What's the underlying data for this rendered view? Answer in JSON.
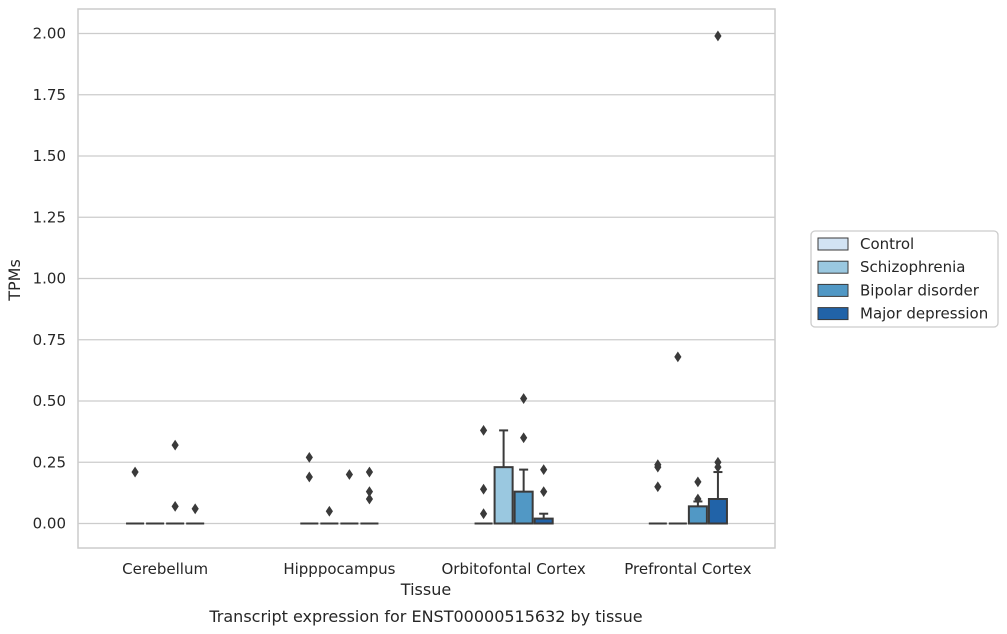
{
  "caption": "Transcript expression for ENST00000515632 by tissue",
  "chart_data": {
    "type": "box",
    "xlabel": "Tissue",
    "ylabel": "TPMs",
    "ylim": [
      -0.1,
      2.1
    ],
    "yticks": [
      0.0,
      0.25,
      0.5,
      0.75,
      1.0,
      1.25,
      1.5,
      1.75,
      2.0
    ],
    "ytick_labels": [
      "0.00",
      "0.25",
      "0.50",
      "0.75",
      "1.00",
      "1.25",
      "1.50",
      "1.75",
      "2.00"
    ],
    "grid": "horizontal",
    "legend_position": "right",
    "categories": [
      "Cerebellum",
      "Hipppocampus",
      "Orbitofontal Cortex",
      "Prefrontal Cortex"
    ],
    "series": [
      {
        "name": "Control",
        "color": "#d2e3f3",
        "boxes": [
          {
            "q1": 0,
            "median": 0,
            "q3": 0,
            "whisker_low": 0,
            "whisker_high": 0,
            "outliers": [
              0.21
            ]
          },
          {
            "q1": 0,
            "median": 0,
            "q3": 0,
            "whisker_low": 0,
            "whisker_high": 0,
            "outliers": [
              0.19,
              0.27
            ]
          },
          {
            "q1": 0,
            "median": 0,
            "q3": 0,
            "whisker_low": 0,
            "whisker_high": 0,
            "outliers": [
              0.04,
              0.14,
              0.38
            ]
          },
          {
            "q1": 0,
            "median": 0,
            "q3": 0,
            "whisker_low": 0,
            "whisker_high": 0,
            "outliers": [
              0.15,
              0.23,
              0.24
            ]
          }
        ]
      },
      {
        "name": "Schizophrenia",
        "color": "#9ac8e0",
        "boxes": [
          {
            "q1": 0,
            "median": 0,
            "q3": 0,
            "whisker_low": 0,
            "whisker_high": 0,
            "outliers": []
          },
          {
            "q1": 0,
            "median": 0,
            "q3": 0,
            "whisker_low": 0,
            "whisker_high": 0,
            "outliers": [
              0.05
            ]
          },
          {
            "q1": 0,
            "median": 0,
            "q3": 0.23,
            "whisker_low": 0,
            "whisker_high": 0.38,
            "outliers": []
          },
          {
            "q1": 0,
            "median": 0,
            "q3": 0,
            "whisker_low": 0,
            "whisker_high": 0,
            "outliers": [
              0.68
            ]
          }
        ]
      },
      {
        "name": "Bipolar disorder",
        "color": "#5198c5",
        "boxes": [
          {
            "q1": 0,
            "median": 0,
            "q3": 0,
            "whisker_low": 0,
            "whisker_high": 0,
            "outliers": [
              0.07,
              0.32
            ]
          },
          {
            "q1": 0,
            "median": 0,
            "q3": 0,
            "whisker_low": 0,
            "whisker_high": 0,
            "outliers": [
              0.2
            ]
          },
          {
            "q1": 0,
            "median": 0,
            "q3": 0.13,
            "whisker_low": 0,
            "whisker_high": 0.22,
            "outliers": [
              0.35,
              0.51
            ]
          },
          {
            "q1": 0,
            "median": 0,
            "q3": 0.07,
            "whisker_low": 0,
            "whisker_high": 0.09,
            "outliers": [
              0.1,
              0.17
            ]
          }
        ]
      },
      {
        "name": "Major depression",
        "color": "#2163a8",
        "boxes": [
          {
            "q1": 0,
            "median": 0,
            "q3": 0,
            "whisker_low": 0,
            "whisker_high": 0,
            "outliers": [
              0.06
            ]
          },
          {
            "q1": 0,
            "median": 0,
            "q3": 0,
            "whisker_low": 0,
            "whisker_high": 0,
            "outliers": [
              0.1,
              0.13,
              0.21
            ]
          },
          {
            "q1": 0,
            "median": 0,
            "q3": 0.02,
            "whisker_low": 0,
            "whisker_high": 0.04,
            "outliers": [
              0.13,
              0.22
            ]
          },
          {
            "q1": 0,
            "median": 0,
            "q3": 0.1,
            "whisker_low": 0,
            "whisker_high": 0.21,
            "outliers": [
              0.23,
              0.25,
              1.99
            ]
          }
        ]
      }
    ]
  }
}
